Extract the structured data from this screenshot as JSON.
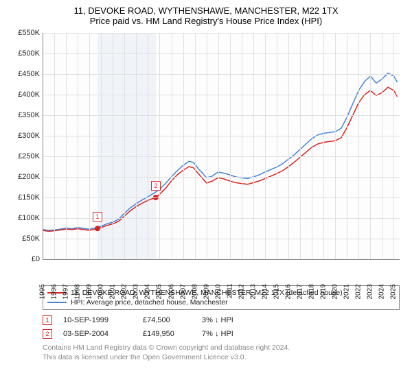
{
  "chart": {
    "title_line1": "11, DEVOKE ROAD, WYTHENSHAWE, MANCHESTER, M22 1TX",
    "title_line2": "Price paid vs. HM Land Registry's House Price Index (HPI)",
    "type": "line",
    "background_color": "#ffffff",
    "plot_bg": "#fdfdfd",
    "grid_color": "#e0e0e0",
    "axis_color": "#888888",
    "label_color": "#222222",
    "label_fontsize": 11,
    "xlim": [
      1995,
      2025.5
    ],
    "ylim": [
      0,
      550000
    ],
    "y_tick_step": 50000,
    "y_tick_labels": [
      "£0",
      "£50K",
      "£100K",
      "£150K",
      "£200K",
      "£250K",
      "£300K",
      "£350K",
      "£400K",
      "£450K",
      "£500K",
      "£550K"
    ],
    "x_ticks": [
      1995,
      1996,
      1997,
      1998,
      1999,
      2000,
      2001,
      2002,
      2003,
      2004,
      2005,
      2006,
      2007,
      2008,
      2009,
      2010,
      2011,
      2012,
      2013,
      2014,
      2015,
      2016,
      2017,
      2018,
      2019,
      2020,
      2021,
      2022,
      2023,
      2024,
      2025
    ],
    "shaded_xrange": [
      1999.69,
      2004.67
    ],
    "line_width": 1.5,
    "series": [
      {
        "name": "price_paid",
        "label": "11, DEVOKE ROAD, WYTHENSHAWE, MANCHESTER, M22 1TX (detached house)",
        "color": "#d8241f",
        "points": [
          [
            1995.0,
            70000
          ],
          [
            1995.5,
            68000
          ],
          [
            1996.0,
            69000
          ],
          [
            1996.5,
            71000
          ],
          [
            1997.0,
            73000
          ],
          [
            1997.5,
            72000
          ],
          [
            1998.0,
            74000
          ],
          [
            1998.5,
            72000
          ],
          [
            1999.0,
            70000
          ],
          [
            1999.5,
            73000
          ],
          [
            1999.69,
            74500
          ],
          [
            2000.0,
            77000
          ],
          [
            2000.5,
            82000
          ],
          [
            2001.0,
            86000
          ],
          [
            2001.5,
            92000
          ],
          [
            2002.0,
            105000
          ],
          [
            2002.5,
            118000
          ],
          [
            2003.0,
            128000
          ],
          [
            2003.5,
            136000
          ],
          [
            2004.0,
            143000
          ],
          [
            2004.67,
            149950
          ],
          [
            2005.0,
            158000
          ],
          [
            2005.5,
            172000
          ],
          [
            2006.0,
            190000
          ],
          [
            2006.5,
            205000
          ],
          [
            2007.0,
            216000
          ],
          [
            2007.5,
            225000
          ],
          [
            2007.9,
            222000
          ],
          [
            2008.3,
            208000
          ],
          [
            2008.7,
            195000
          ],
          [
            2009.0,
            185000
          ],
          [
            2009.5,
            190000
          ],
          [
            2010.0,
            198000
          ],
          [
            2010.5,
            195000
          ],
          [
            2011.0,
            190000
          ],
          [
            2011.5,
            186000
          ],
          [
            2012.0,
            184000
          ],
          [
            2012.5,
            182000
          ],
          [
            2013.0,
            186000
          ],
          [
            2013.5,
            190000
          ],
          [
            2014.0,
            196000
          ],
          [
            2014.5,
            202000
          ],
          [
            2015.0,
            208000
          ],
          [
            2015.5,
            215000
          ],
          [
            2016.0,
            225000
          ],
          [
            2016.5,
            236000
          ],
          [
            2017.0,
            248000
          ],
          [
            2017.5,
            260000
          ],
          [
            2018.0,
            272000
          ],
          [
            2018.5,
            280000
          ],
          [
            2019.0,
            284000
          ],
          [
            2019.5,
            286000
          ],
          [
            2020.0,
            288000
          ],
          [
            2020.5,
            295000
          ],
          [
            2021.0,
            320000
          ],
          [
            2021.5,
            350000
          ],
          [
            2022.0,
            380000
          ],
          [
            2022.5,
            400000
          ],
          [
            2023.0,
            410000
          ],
          [
            2023.5,
            398000
          ],
          [
            2024.0,
            405000
          ],
          [
            2024.5,
            418000
          ],
          [
            2025.0,
            410000
          ],
          [
            2025.3,
            395000
          ]
        ]
      },
      {
        "name": "hpi",
        "label": "HPI: Average price, detached house, Manchester",
        "color": "#4682d8",
        "points": [
          [
            1995.0,
            72000
          ],
          [
            1995.5,
            70000
          ],
          [
            1996.0,
            71000
          ],
          [
            1996.5,
            73000
          ],
          [
            1997.0,
            76000
          ],
          [
            1997.5,
            74000
          ],
          [
            1998.0,
            77000
          ],
          [
            1998.5,
            75000
          ],
          [
            1999.0,
            73000
          ],
          [
            1999.5,
            76000
          ],
          [
            2000.0,
            80000
          ],
          [
            2000.5,
            86000
          ],
          [
            2001.0,
            90000
          ],
          [
            2001.5,
            97000
          ],
          [
            2002.0,
            112000
          ],
          [
            2002.5,
            125000
          ],
          [
            2003.0,
            135000
          ],
          [
            2003.5,
            144000
          ],
          [
            2004.0,
            152000
          ],
          [
            2004.5,
            160000
          ],
          [
            2005.0,
            170000
          ],
          [
            2005.5,
            184000
          ],
          [
            2006.0,
            200000
          ],
          [
            2006.5,
            215000
          ],
          [
            2007.0,
            228000
          ],
          [
            2007.5,
            238000
          ],
          [
            2007.9,
            235000
          ],
          [
            2008.3,
            220000
          ],
          [
            2008.7,
            208000
          ],
          [
            2009.0,
            198000
          ],
          [
            2009.5,
            202000
          ],
          [
            2010.0,
            212000
          ],
          [
            2010.5,
            209000
          ],
          [
            2011.0,
            205000
          ],
          [
            2011.5,
            200000
          ],
          [
            2012.0,
            198000
          ],
          [
            2012.5,
            196000
          ],
          [
            2013.0,
            200000
          ],
          [
            2013.5,
            205000
          ],
          [
            2014.0,
            212000
          ],
          [
            2014.5,
            218000
          ],
          [
            2015.0,
            224000
          ],
          [
            2015.5,
            232000
          ],
          [
            2016.0,
            243000
          ],
          [
            2016.5,
            254000
          ],
          [
            2017.0,
            267000
          ],
          [
            2017.5,
            280000
          ],
          [
            2018.0,
            293000
          ],
          [
            2018.5,
            302000
          ],
          [
            2019.0,
            306000
          ],
          [
            2019.5,
            308000
          ],
          [
            2020.0,
            310000
          ],
          [
            2020.5,
            318000
          ],
          [
            2021.0,
            345000
          ],
          [
            2021.5,
            378000
          ],
          [
            2022.0,
            410000
          ],
          [
            2022.5,
            432000
          ],
          [
            2023.0,
            445000
          ],
          [
            2023.5,
            428000
          ],
          [
            2024.0,
            438000
          ],
          [
            2024.5,
            452000
          ],
          [
            2025.0,
            445000
          ],
          [
            2025.3,
            430000
          ]
        ]
      }
    ],
    "sale_markers": [
      {
        "n": "1",
        "x": 1999.69,
        "y": 74500,
        "color": "#d8241f"
      },
      {
        "n": "2",
        "x": 2004.67,
        "y": 149950,
        "color": "#d8241f"
      }
    ]
  },
  "legend": {
    "border_color": "#888888",
    "items": [
      {
        "color": "#d8241f",
        "label": "11, DEVOKE ROAD, WYTHENSHAWE, MANCHESTER, M22 1TX (detached house)"
      },
      {
        "color": "#4682d8",
        "label": "HPI: Average price, detached house, Manchester"
      }
    ]
  },
  "sales": [
    {
      "n": "1",
      "color": "#d8241f",
      "date": "10-SEP-1999",
      "price": "£74,500",
      "diff": "3% ↓ HPI"
    },
    {
      "n": "2",
      "color": "#d8241f",
      "date": "03-SEP-2004",
      "price": "£149,950",
      "diff": "7% ↓ HPI"
    }
  ],
  "footer": {
    "line1": "Contains HM Land Registry data © Crown copyright and database right 2024.",
    "line2": "This data is licensed under the Open Government Licence v3.0.",
    "color": "#888888"
  }
}
